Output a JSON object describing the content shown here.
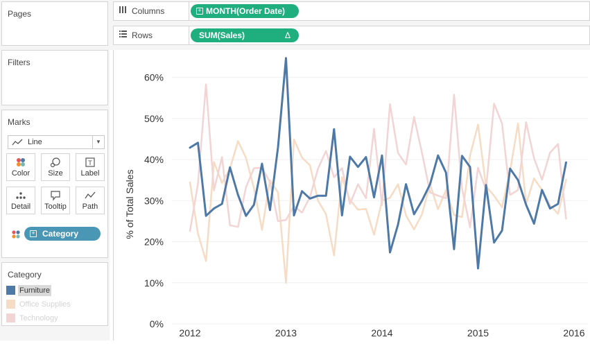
{
  "panels": {
    "pages": "Pages",
    "filters": "Filters",
    "marks": "Marks",
    "category": "Category"
  },
  "shelves": {
    "columns": {
      "label": "Columns",
      "icon": "columns-icon",
      "pill": "MONTH(Order Date)"
    },
    "rows": {
      "label": "Rows",
      "icon": "rows-icon",
      "pill": "SUM(Sales)",
      "pill_badge": "Δ"
    }
  },
  "marks_card": {
    "mark_type": "Line",
    "buttons": {
      "color": "Color",
      "size": "Size",
      "label": "Label",
      "detail": "Detail",
      "tooltip": "Tooltip",
      "path": "Path"
    },
    "category_pill": "Category"
  },
  "legend": {
    "items": [
      {
        "label": "Furniture",
        "color": "#4e79a7",
        "highlighted": true
      },
      {
        "label": "Office Supplies",
        "color": "#f6dcc4",
        "highlighted": false
      },
      {
        "label": "Technology",
        "color": "#f2d4d4",
        "highlighted": false
      }
    ]
  },
  "chart_data": {
    "type": "line",
    "ylabel": "% of Total Sales",
    "xlabel": "",
    "ylim": [
      0,
      65
    ],
    "yticks": [
      "0%",
      "10%",
      "20%",
      "30%",
      "40%",
      "50%",
      "60%"
    ],
    "ytick_values": [
      0,
      10,
      20,
      30,
      40,
      50,
      60
    ],
    "xticks": [
      "2012",
      "2013",
      "2014",
      "2015",
      "2016"
    ],
    "xtick_values": [
      0,
      12,
      24,
      36,
      48
    ],
    "x_start": "2012-01",
    "x_end": "2015-12",
    "series": [
      {
        "name": "Furniture",
        "color": "#4e79a7",
        "highlighted": true,
        "values": [
          42.9,
          44.1,
          26.3,
          28.1,
          29.2,
          38.1,
          31.4,
          26.3,
          29.0,
          39.0,
          27.7,
          43.0,
          64.7,
          26.4,
          32.3,
          30.5,
          31.2,
          31.2,
          47.4,
          26.4,
          40.7,
          38.2,
          40.6,
          30.8,
          41.0,
          17.4,
          24.2,
          34.0,
          26.7,
          30.0,
          34.0,
          41.0,
          36.8,
          18.2,
          40.9,
          38.2,
          13.5,
          33.8,
          19.8,
          22.7,
          37.8,
          35.0,
          29.0,
          24.4,
          32.6,
          28.1,
          29.2,
          39.3
        ]
      },
      {
        "name": "Office Supplies",
        "color": "#f6dcc4",
        "highlighted": false,
        "values": [
          34.5,
          22.0,
          15.3,
          39.4,
          34.3,
          37.8,
          44.5,
          40.4,
          33.0,
          22.9,
          35.0,
          32.0,
          10.0,
          44.9,
          40.5,
          38.6,
          30.0,
          26.7,
          16.7,
          35.7,
          30.2,
          27.8,
          28.0,
          21.7,
          30.0,
          30.7,
          34.0,
          26.4,
          23.0,
          26.7,
          34.0,
          27.9,
          32.6,
          26.5,
          26.0,
          41.0,
          48.5,
          33.5,
          31.2,
          28.4,
          37.2,
          48.8,
          29.2,
          35.4,
          32.6,
          28.9,
          26.8,
          35.1
        ]
      },
      {
        "name": "Technology",
        "color": "#f2d4d4",
        "highlighted": false,
        "values": [
          22.6,
          34.0,
          58.3,
          32.5,
          40.6,
          24.0,
          23.6,
          33.3,
          37.9,
          38.0,
          34.5,
          25.0,
          25.3,
          28.7,
          27.1,
          30.9,
          37.8,
          42.1,
          35.7,
          37.9,
          29.2,
          34.0,
          30.6,
          47.5,
          28.9,
          53.5,
          41.6,
          38.8,
          50.4,
          41.6,
          32.0,
          31.2,
          30.6,
          55.8,
          33.0,
          23.5,
          38.0,
          32.7,
          53.6,
          48.8,
          31.4,
          32.6,
          49.1,
          40.3,
          35.1,
          41.7,
          43.8,
          25.6
        ]
      }
    ]
  }
}
